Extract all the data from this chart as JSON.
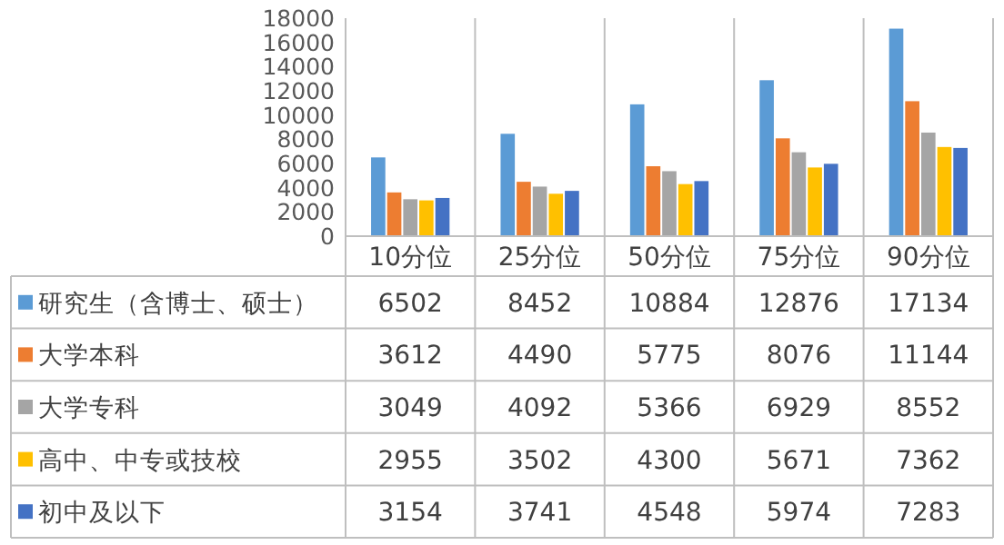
{
  "chart_data": {
    "type": "bar",
    "categories": [
      "10分位",
      "25分位",
      "50分位",
      "75分位",
      "90分位"
    ],
    "series": [
      {
        "name": "研究生（含博士、硕士）",
        "color": "#5b9bd5",
        "values": [
          6502,
          8452,
          10884,
          12876,
          17134
        ]
      },
      {
        "name": "大学本科",
        "color": "#ed7d31",
        "values": [
          3612,
          4490,
          5775,
          8076,
          11144
        ]
      },
      {
        "name": "大学专科",
        "color": "#a5a5a5",
        "values": [
          3049,
          4092,
          5366,
          6929,
          8552
        ]
      },
      {
        "name": "高中、中专或技校",
        "color": "#ffc000",
        "values": [
          2955,
          3502,
          4300,
          5671,
          7362
        ]
      },
      {
        "name": "初中及以下",
        "color": "#4472c4",
        "values": [
          3154,
          3741,
          4548,
          5974,
          7283
        ]
      }
    ],
    "ylim": [
      0,
      18000
    ],
    "yticks": [
      0,
      2000,
      4000,
      6000,
      8000,
      10000,
      12000,
      14000,
      16000,
      18000
    ],
    "data_labels": true,
    "legend": "bottom"
  }
}
